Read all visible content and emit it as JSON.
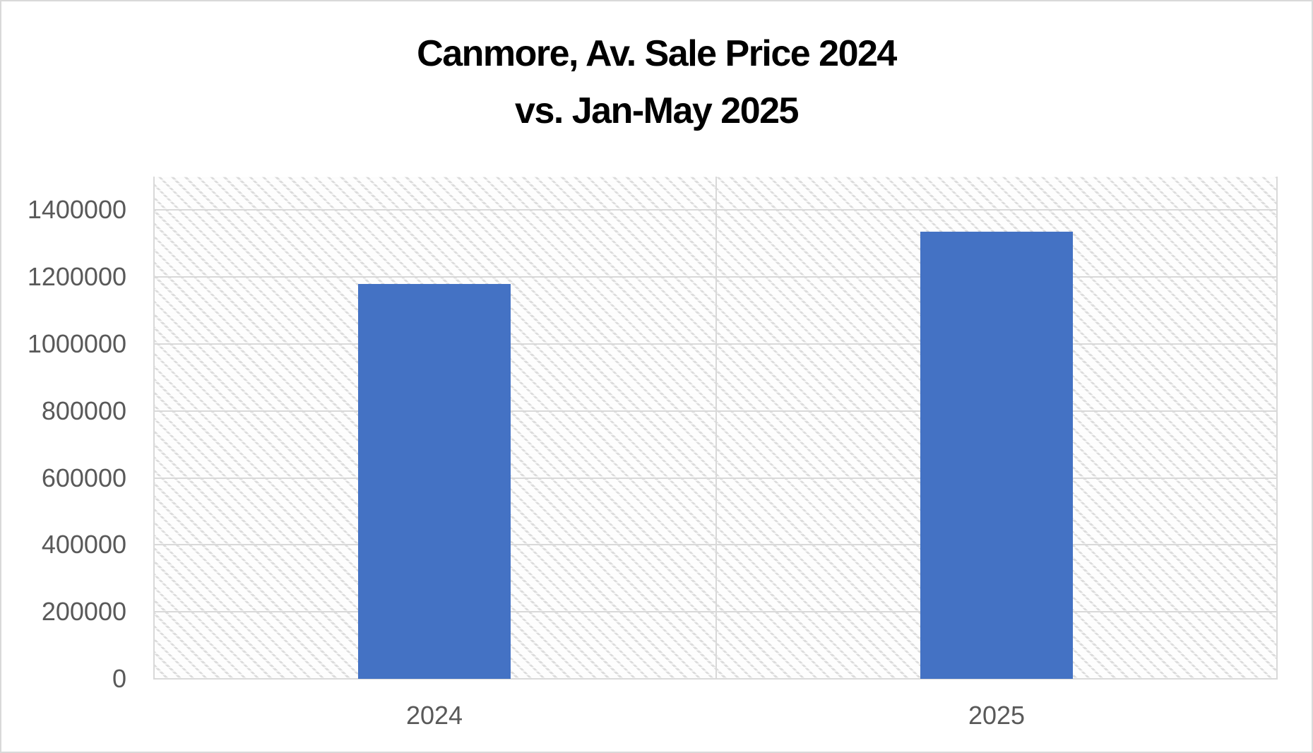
{
  "window": {
    "background": "#ffffff",
    "border_color": "#d9d9d9"
  },
  "title": {
    "line1": "Canmore, Av. Sale Price 2024",
    "line2": "vs. Jan-May 2025"
  },
  "chart_data": {
    "type": "bar",
    "title": "Canmore, Av. Sale Price 2024 vs. Jan-May 2025",
    "categories": [
      "2024",
      "2025"
    ],
    "values": [
      1180000,
      1335000
    ],
    "xlabel": "",
    "ylabel": "",
    "ylim": [
      0,
      1500000
    ],
    "yticks": [
      0,
      200000,
      400000,
      600000,
      800000,
      1000000,
      1200000,
      1400000
    ],
    "ytick_labels": [
      "0",
      "200000",
      "400000",
      "600000",
      "800000",
      "1000000",
      "1200000",
      "1400000"
    ],
    "grid": true,
    "legend": "none",
    "plot_background": "dotted-diagonal-hatch",
    "colors": {
      "bar": "#4472c4",
      "gridline": "#d9d9d9",
      "tick_label": "#595959",
      "title": "#000000",
      "hatch": "#dcdcdc"
    }
  }
}
